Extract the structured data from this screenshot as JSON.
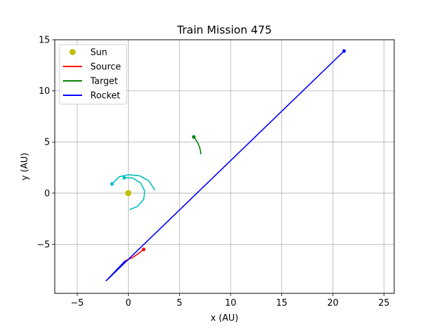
{
  "chart_data": {
    "type": "line",
    "title": "Train Mission 475",
    "xlabel": "x (AU)",
    "ylabel": "y (AU)",
    "xlim": [
      -7.2,
      26.0
    ],
    "ylim": [
      -9.8,
      15.0
    ],
    "xticks": [
      -5,
      0,
      5,
      10,
      15,
      20,
      25
    ],
    "yticks": [
      -5,
      0,
      5,
      10,
      15
    ],
    "xtick_labels": [
      "−5",
      "0",
      "5",
      "10",
      "15",
      "20",
      "25"
    ],
    "ytick_labels": [
      "−5",
      "0",
      "5",
      "10",
      "15"
    ],
    "grid": true,
    "legend_position": "top-left",
    "legend": [
      {
        "name": "Sun",
        "color": "#bfbf00",
        "kind": "marker"
      },
      {
        "name": "Source",
        "color": "#ff0000",
        "kind": "line"
      },
      {
        "name": "Target",
        "color": "#008000",
        "kind": "line"
      },
      {
        "name": "Rocket",
        "color": "#0000ff",
        "kind": "line"
      }
    ],
    "sun": {
      "x": 0,
      "y": 0,
      "color": "#bfbf00"
    },
    "series": [
      {
        "name": "Source",
        "color": "#ff0000",
        "points": [
          [
            -0.3,
            -6.6
          ],
          [
            0.4,
            -6.3
          ],
          [
            1.0,
            -5.9
          ],
          [
            1.5,
            -5.5
          ]
        ],
        "end_marker": true
      },
      {
        "name": "Target",
        "color": "#008000",
        "points": [
          [
            6.4,
            5.5
          ],
          [
            6.8,
            4.9
          ],
          [
            7.0,
            4.4
          ],
          [
            7.1,
            3.8
          ]
        ],
        "end_marker": true,
        "marker_at_start": true
      },
      {
        "name": "Rocket",
        "color": "#0000ff",
        "points": [
          [
            -0.3,
            -6.6
          ],
          [
            -2.2,
            -8.6
          ],
          [
            21.1,
            13.9
          ]
        ],
        "end_marker": true
      }
    ],
    "orbits": [
      {
        "color": "#00bfbf",
        "points": [
          [
            0.1,
            -1.6
          ],
          [
            0.9,
            -1.3
          ],
          [
            1.5,
            -0.6
          ],
          [
            1.6,
            0.2
          ],
          [
            1.2,
            1.0
          ],
          [
            0.4,
            1.5
          ],
          [
            -0.4,
            1.5
          ]
        ],
        "marker": [
          -0.4,
          1.5
        ]
      },
      {
        "color": "#00bfbf",
        "points": [
          [
            2.6,
            0.3
          ],
          [
            2.0,
            1.2
          ],
          [
            1.1,
            1.7
          ],
          [
            0.0,
            1.8
          ],
          [
            -0.9,
            1.6
          ],
          [
            -1.6,
            0.9
          ]
        ],
        "marker": [
          -1.6,
          0.9
        ]
      }
    ]
  }
}
